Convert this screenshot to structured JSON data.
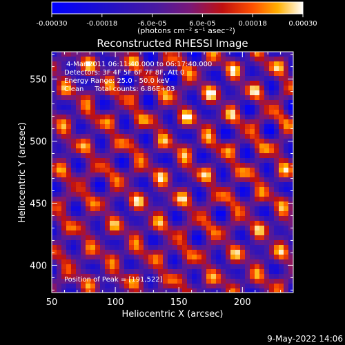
{
  "colorbar": {
    "tick_labels": [
      "-0.00030",
      "-0.00018",
      "-6.0e-05",
      "6.0e-05",
      "0.00018",
      "0.00030"
    ],
    "tick_values": [
      -0.0003,
      -0.00018,
      -6e-05,
      6e-05,
      0.00018,
      0.0003
    ],
    "range": [
      -0.0003,
      0.0003
    ],
    "unit_label": "(photons cm⁻² s⁻¹ asec⁻²)"
  },
  "chart_data": {
    "type": "heatmap",
    "title": "Reconstructed RHESSI Image",
    "xlabel": "Heliocentric X (arcsec)",
    "ylabel": "Heliocentric Y (arcsec)",
    "xlim": [
      50,
      240
    ],
    "ylim": [
      378,
      572
    ],
    "x_ticks": [
      50,
      100,
      150,
      200
    ],
    "y_ticks": [
      400,
      450,
      500,
      550
    ],
    "x_tick_labels": [
      "50",
      "100",
      "150",
      "200"
    ],
    "y_tick_labels": [
      "400",
      "450",
      "500",
      "550"
    ],
    "value_range": [
      -0.0003,
      0.0003
    ],
    "peak_position": [
      191,
      522
    ]
  },
  "annotations": [
    " 4-Mar-2011 06:11:40.000 to 06:17:40.000",
    "Detectors: 3F 4F 5F 6F 7F 8F, Att 0",
    "Energy Range: 25.0 - 50.0 keV",
    "Clean     Total counts: 6.86E+03"
  ],
  "peak_label": "Position of Peak = [191,522]",
  "timestamp": "9-May-2022 14:06",
  "colors": {
    "background": "#000000",
    "foreground": "#ffffff"
  }
}
